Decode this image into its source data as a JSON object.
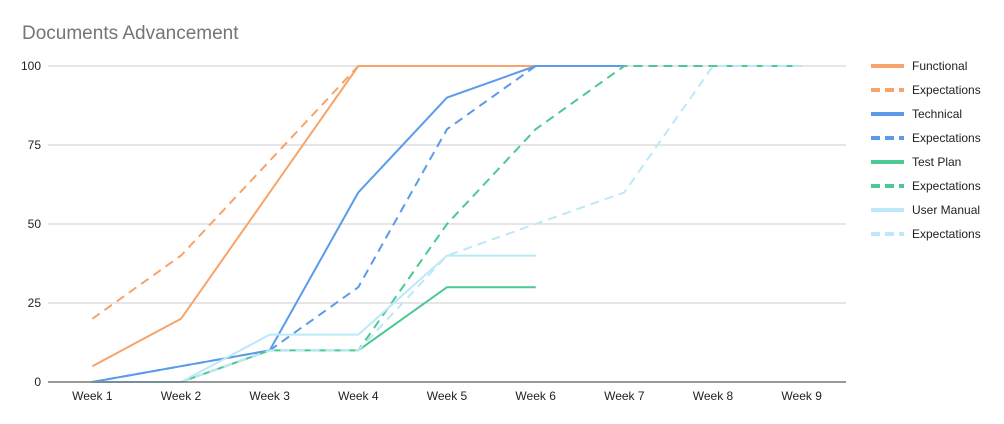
{
  "chart_data": {
    "type": "line",
    "title": "Documents Advancement",
    "xlabel": "",
    "ylabel": "",
    "categories": [
      "Week 1",
      "Week 2",
      "Week 3",
      "Week 4",
      "Week 5",
      "Week 6",
      "Week 7",
      "Week 8",
      "Week 9"
    ],
    "ylim": [
      0,
      100
    ],
    "yticks": [
      "0",
      "25",
      "50",
      "75",
      "100"
    ],
    "ytick_values": [
      0,
      25,
      50,
      75,
      100
    ],
    "grid": true,
    "legend_position": "right",
    "series": [
      {
        "name": "Functional",
        "color": "#f6a46b",
        "dashed": false,
        "values": [
          5,
          20,
          60,
          100,
          100,
          100,
          null,
          null,
          null
        ]
      },
      {
        "name": "Expectations",
        "color": "#f6a46b",
        "dashed": true,
        "values": [
          20,
          40,
          70,
          100,
          null,
          null,
          null,
          null,
          null
        ]
      },
      {
        "name": "Technical",
        "color": "#5b9bea",
        "dashed": false,
        "values": [
          0,
          5,
          10,
          60,
          90,
          100,
          100,
          null,
          null
        ]
      },
      {
        "name": "Expectations",
        "color": "#5b9bea",
        "dashed": true,
        "values": [
          0,
          5,
          10,
          30,
          80,
          100,
          null,
          null,
          null
        ]
      },
      {
        "name": "Test Plan",
        "color": "#4cc992",
        "dashed": false,
        "values": [
          null,
          0,
          10,
          10,
          30,
          30,
          null,
          null,
          null
        ]
      },
      {
        "name": "Expectations",
        "color": "#4cc992",
        "dashed": true,
        "values": [
          null,
          0,
          10,
          10,
          50,
          80,
          100,
          100,
          100
        ]
      },
      {
        "name": "User Manual",
        "color": "#bde8f7",
        "dashed": false,
        "values": [
          0,
          0,
          15,
          15,
          40,
          40,
          null,
          null,
          null
        ]
      },
      {
        "name": "Expectations",
        "color": "#bde8f7",
        "dashed": true,
        "values": [
          null,
          0,
          10,
          10,
          40,
          50,
          60,
          100,
          100
        ]
      }
    ]
  }
}
